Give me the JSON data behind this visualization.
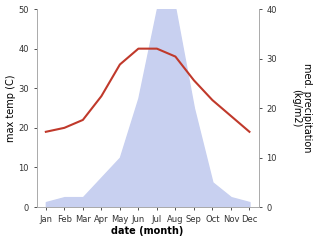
{
  "months": [
    "Jan",
    "Feb",
    "Mar",
    "Apr",
    "May",
    "Jun",
    "Jul",
    "Aug",
    "Sep",
    "Oct",
    "Nov",
    "Dec"
  ],
  "month_indices": [
    0,
    1,
    2,
    3,
    4,
    5,
    6,
    7,
    8,
    9,
    10,
    11
  ],
  "temperature": [
    19,
    20,
    22,
    28,
    36,
    40,
    40,
    38,
    32,
    27,
    23,
    19
  ],
  "precipitation": [
    1,
    2,
    2,
    6,
    10,
    22,
    40,
    40,
    20,
    5,
    2,
    1
  ],
  "temp_color": "#c0392b",
  "precip_fill_color": "#c8d0f0",
  "temp_ylim": [
    0,
    50
  ],
  "precip_ylim": [
    0,
    40
  ],
  "temp_yticks": [
    0,
    10,
    20,
    30,
    40,
    50
  ],
  "precip_yticks": [
    0,
    10,
    20,
    30,
    40
  ],
  "xlabel": "date (month)",
  "ylabel_left": "max temp (C)",
  "ylabel_right": "med. precipitation\n(kg/m2)",
  "bg_color": "#ffffff",
  "spine_color": "#aaaaaa",
  "tick_color": "#333333",
  "label_fontsize": 7,
  "tick_fontsize": 6
}
